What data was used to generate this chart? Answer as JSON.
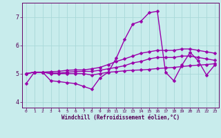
{
  "xlabel": "Windchill (Refroidissement éolien,°C)",
  "background_color": "#c8ecec",
  "grid_color": "#a8d8d8",
  "line_color": "#9900aa",
  "markersize": 2.5,
  "linewidth": 1.0,
  "xlim": [
    -0.5,
    23.5
  ],
  "ylim": [
    3.8,
    7.5
  ],
  "yticks": [
    4,
    5,
    6,
    7
  ],
  "xticks": [
    0,
    1,
    2,
    3,
    4,
    5,
    6,
    7,
    8,
    9,
    10,
    11,
    12,
    13,
    14,
    15,
    16,
    17,
    18,
    19,
    20,
    21,
    22,
    23
  ],
  "series": [
    [
      4.65,
      5.05,
      5.05,
      4.75,
      4.72,
      4.68,
      4.65,
      4.55,
      4.45,
      4.85,
      5.05,
      5.55,
      6.2,
      6.75,
      6.85,
      7.15,
      7.2,
      5.05,
      4.75,
      5.3,
      5.75,
      5.45,
      4.95,
      5.3
    ],
    [
      5.0,
      5.05,
      5.05,
      5.0,
      5.0,
      5.0,
      5.0,
      5.0,
      4.95,
      5.0,
      5.05,
      5.07,
      5.1,
      5.12,
      5.13,
      5.15,
      5.18,
      5.2,
      5.22,
      5.25,
      5.28,
      5.3,
      5.32,
      5.35
    ],
    [
      5.0,
      5.05,
      5.05,
      5.02,
      5.02,
      5.05,
      5.07,
      5.08,
      5.08,
      5.12,
      5.17,
      5.22,
      5.28,
      5.38,
      5.43,
      5.52,
      5.57,
      5.57,
      5.57,
      5.62,
      5.62,
      5.57,
      5.52,
      5.47
    ],
    [
      5.0,
      5.05,
      5.05,
      5.07,
      5.08,
      5.12,
      5.13,
      5.13,
      5.17,
      5.22,
      5.32,
      5.43,
      5.52,
      5.62,
      5.72,
      5.77,
      5.82,
      5.82,
      5.82,
      5.87,
      5.87,
      5.82,
      5.77,
      5.72
    ]
  ]
}
